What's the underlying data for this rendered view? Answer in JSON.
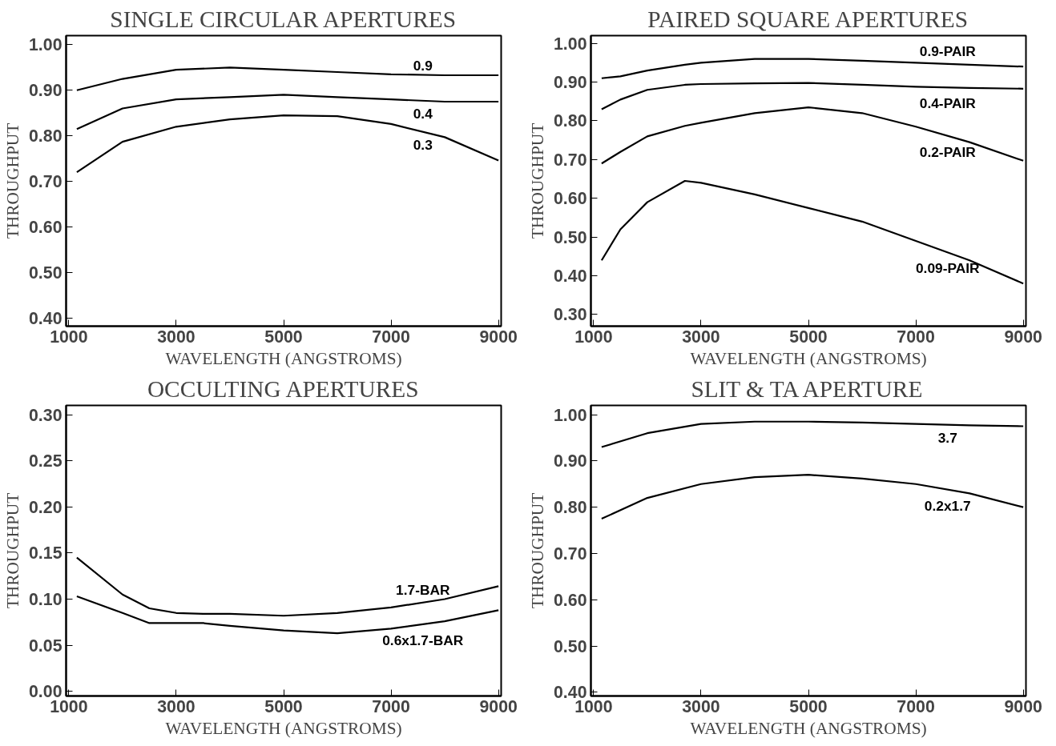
{
  "chart_data": [
    {
      "type": "line",
      "title": "SINGLE CIRCULAR APERTURES",
      "xlabel": "WAVELENGTH (ANGSTROMS)",
      "ylabel": "THROUGHPUT",
      "xlim": [
        950,
        9050
      ],
      "xticks": [
        1000,
        3000,
        5000,
        7000,
        9000
      ],
      "ylim": [
        0.382,
        1.02
      ],
      "yticks": [
        {
          "value": 0.4,
          "label": "0.40"
        },
        {
          "value": 0.5,
          "label": "0.50"
        },
        {
          "value": 0.6,
          "label": "0.60"
        },
        {
          "value": 0.7,
          "label": "0.70"
        },
        {
          "value": 0.8,
          "label": "0.80"
        },
        {
          "value": 0.9,
          "label": "0.90"
        },
        {
          "value": 1.0,
          "label": "1.00"
        }
      ],
      "grid": false,
      "line_style": "solid",
      "marker": "none",
      "x": [
        1150,
        2000,
        3000,
        4000,
        5000,
        6000,
        7000,
        8000,
        9000
      ],
      "series": [
        {
          "name": "0.9",
          "color": "#000000",
          "values": [
            0.9,
            0.925,
            0.945,
            0.95,
            0.945,
            0.94,
            0.935,
            0.933,
            0.933
          ]
        },
        {
          "name": "0.4",
          "color": "#000000",
          "values": [
            0.815,
            0.86,
            0.88,
            0.885,
            0.89,
            0.885,
            0.88,
            0.875,
            0.875
          ]
        },
        {
          "name": "0.3",
          "color": "#000000",
          "values": [
            0.72,
            0.787,
            0.82,
            0.836,
            0.845,
            0.843,
            0.826,
            0.797,
            0.746
          ]
        }
      ]
    },
    {
      "type": "line",
      "title": "PAIRED SQUARE APERTURES",
      "xlabel": "WAVELENGTH (ANGSTROMS)",
      "ylabel": "THROUGHPUT",
      "xlim": [
        950,
        9050
      ],
      "xticks": [
        1000,
        3000,
        5000,
        7000,
        9000
      ],
      "ylim": [
        0.27,
        1.02
      ],
      "yticks": [
        {
          "value": 0.3,
          "label": "0.30"
        },
        {
          "value": 0.4,
          "label": "0.40"
        },
        {
          "value": 0.5,
          "label": "0.50"
        },
        {
          "value": 0.6,
          "label": "0.60"
        },
        {
          "value": 0.7,
          "label": "0.70"
        },
        {
          "value": 0.8,
          "label": "0.80"
        },
        {
          "value": 0.9,
          "label": "0.90"
        },
        {
          "value": 1.0,
          "label": "1.00"
        }
      ],
      "grid": false,
      "line_style": "solid",
      "marker": "none",
      "x": [
        1150,
        1500,
        2000,
        2700,
        3000,
        4000,
        5000,
        6000,
        7000,
        8000,
        9000
      ],
      "series": [
        {
          "name": "0.9-PAIR",
          "color": "#000000",
          "values": [
            0.91,
            0.915,
            0.93,
            0.945,
            0.95,
            0.96,
            0.96,
            0.955,
            0.95,
            0.945,
            0.94
          ]
        },
        {
          "name": "0.4-PAIR",
          "color": "#000000",
          "values": [
            0.83,
            0.855,
            0.88,
            0.893,
            0.895,
            0.897,
            0.898,
            0.893,
            0.888,
            0.885,
            0.883
          ]
        },
        {
          "name": "0.2-PAIR",
          "color": "#000000",
          "values": [
            0.69,
            0.72,
            0.76,
            0.787,
            0.795,
            0.82,
            0.835,
            0.82,
            0.785,
            0.745,
            0.697
          ]
        },
        {
          "name": "0.09-PAIR",
          "color": "#000000",
          "values": [
            0.44,
            0.52,
            0.59,
            0.645,
            0.64,
            0.61,
            0.575,
            0.54,
            0.49,
            0.44,
            0.38
          ]
        }
      ]
    },
    {
      "type": "line",
      "title": "OCCULTING APERTURES",
      "xlabel": "WAVELENGTH (ANGSTROMS)",
      "ylabel": "THROUGHPUT",
      "xlim": [
        950,
        9050
      ],
      "xticks": [
        1000,
        3000,
        5000,
        7000,
        9000
      ],
      "ylim": [
        -0.005,
        0.31
      ],
      "yticks": [
        {
          "value": 0.0,
          "label": "0.00"
        },
        {
          "value": 0.05,
          "label": "0.05"
        },
        {
          "value": 0.1,
          "label": "0.10"
        },
        {
          "value": 0.15,
          "label": "0.15"
        },
        {
          "value": 0.2,
          "label": "0.20"
        },
        {
          "value": 0.25,
          "label": "0.25"
        },
        {
          "value": 0.3,
          "label": "0.30"
        }
      ],
      "grid": false,
      "line_style": "solid",
      "marker": "none",
      "x": [
        1150,
        2000,
        2500,
        3000,
        3500,
        4000,
        5000,
        6000,
        7000,
        8000,
        9000
      ],
      "series": [
        {
          "name": "1.7-BAR",
          "color": "#000000",
          "values": [
            0.145,
            0.105,
            0.09,
            0.085,
            0.084,
            0.084,
            0.082,
            0.085,
            0.091,
            0.1,
            0.114
          ]
        },
        {
          "name": "0.6x1.7-BAR",
          "color": "#000000",
          "values": [
            0.103,
            0.085,
            0.074,
            0.074,
            0.074,
            0.071,
            0.066,
            0.063,
            0.068,
            0.076,
            0.088
          ]
        }
      ]
    },
    {
      "type": "line",
      "title": "SLIT & TA APERTURE",
      "xlabel": "WAVELENGTH (ANGSTROMS)",
      "ylabel": "THROUGHPUT",
      "xlim": [
        950,
        9050
      ],
      "xticks": [
        1000,
        3000,
        5000,
        7000,
        9000
      ],
      "ylim": [
        0.392,
        1.02
      ],
      "yticks": [
        {
          "value": 0.4,
          "label": "0.40"
        },
        {
          "value": 0.5,
          "label": "0.50"
        },
        {
          "value": 0.6,
          "label": "0.60"
        },
        {
          "value": 0.7,
          "label": "0.70"
        },
        {
          "value": 0.8,
          "label": "0.80"
        },
        {
          "value": 0.9,
          "label": "0.90"
        },
        {
          "value": 1.0,
          "label": "1.00"
        }
      ],
      "grid": false,
      "line_style": "solid",
      "marker": "none",
      "x": [
        1150,
        2000,
        3000,
        4000,
        5000,
        6000,
        7000,
        8000,
        9000
      ],
      "series": [
        {
          "name": "3.7",
          "color": "#000000",
          "values": [
            0.93,
            0.96,
            0.98,
            0.985,
            0.985,
            0.983,
            0.98,
            0.977,
            0.975
          ]
        },
        {
          "name": "0.2x1.7",
          "color": "#000000",
          "values": [
            0.775,
            0.82,
            0.85,
            0.865,
            0.87,
            0.862,
            0.85,
            0.83,
            0.8
          ]
        }
      ]
    }
  ]
}
